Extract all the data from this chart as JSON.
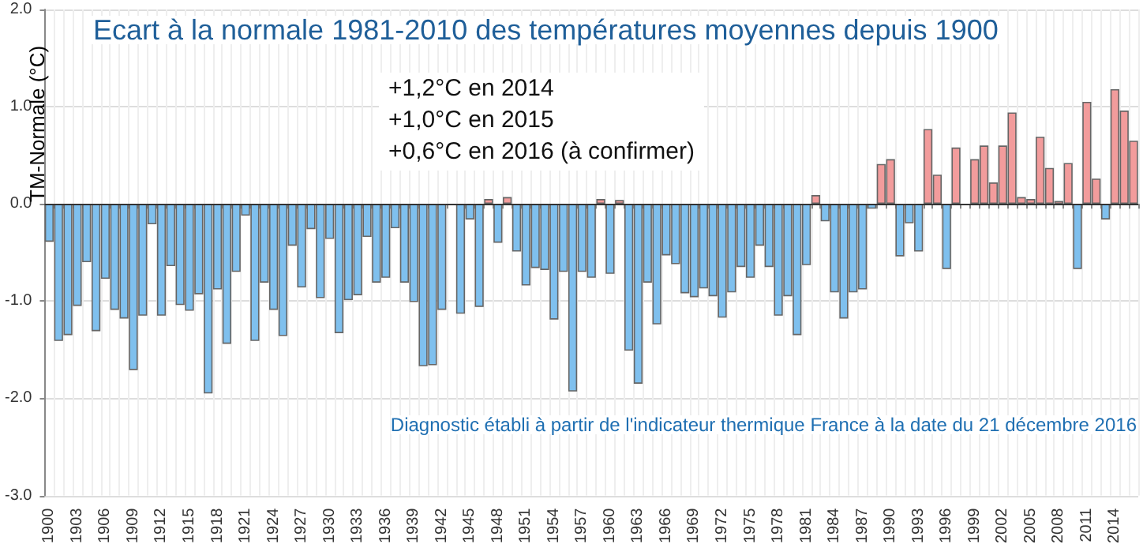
{
  "chart_data": {
    "type": "bar",
    "title": "Ecart à la normale 1981-2010 des températures moyennes depuis 1900",
    "ylabel": "TM-Normale (°C)",
    "annotations": [
      "+1,2°C en 2014\n+1,0°C en 2015\n+0,6°C en 2016 (à confirmer)",
      "Diagnostic établi à partir de l'indicateur thermique France à la date du 21 décembre 2016"
    ],
    "categories": [
      "1900",
      null,
      null,
      "1903",
      null,
      null,
      "1906",
      null,
      null,
      "1909",
      null,
      null,
      "1912",
      null,
      null,
      "1915",
      null,
      null,
      "1918",
      null,
      null,
      "1921",
      null,
      null,
      "1924",
      null,
      null,
      "1927",
      null,
      null,
      "1930",
      null,
      null,
      "1933",
      null,
      null,
      "1936",
      null,
      null,
      "1939",
      null,
      null,
      "1942",
      null,
      null,
      "1945",
      null,
      null,
      "1948",
      null,
      null,
      "1951",
      null,
      null,
      "1954",
      null,
      null,
      "1957",
      null,
      null,
      "1960",
      null,
      null,
      "1963",
      null,
      null,
      "1966",
      null,
      null,
      "1969",
      null,
      null,
      "1972",
      null,
      null,
      "1975",
      null,
      null,
      "1978",
      null,
      null,
      "1981",
      null,
      null,
      "1984",
      null,
      null,
      "1987",
      null,
      null,
      "1990",
      null,
      null,
      "1993",
      null,
      null,
      "1996",
      null,
      null,
      "1999",
      null,
      null,
      "2002",
      null,
      null,
      "2005",
      null,
      null,
      "2008",
      null,
      null,
      "2011",
      null,
      null,
      "2014",
      null,
      null
    ],
    "values": [
      -0.39,
      -1.41,
      -1.35,
      -1.05,
      -0.6,
      -1.31,
      -0.77,
      -1.09,
      -1.18,
      -1.71,
      -1.15,
      -0.21,
      -1.15,
      -0.64,
      -1.04,
      -1.1,
      -0.93,
      -1.95,
      -0.88,
      -1.44,
      -0.7,
      -0.12,
      -1.41,
      -0.81,
      -1.09,
      -1.36,
      -0.43,
      -0.86,
      -0.26,
      -0.97,
      -0.36,
      -1.33,
      -0.99,
      -0.94,
      -0.34,
      -0.81,
      -0.76,
      -0.25,
      -0.81,
      -1.01,
      -1.67,
      -1.66,
      -1.09,
      null,
      -1.13,
      -0.16,
      -1.06,
      0.05,
      -0.4,
      0.07,
      -0.49,
      -0.84,
      -0.66,
      -0.68,
      -1.19,
      -0.7,
      -1.93,
      -0.7,
      -0.76,
      0.05,
      -0.72,
      0.04,
      -1.51,
      -1.85,
      -0.81,
      -1.24,
      -0.53,
      -0.62,
      -0.92,
      -0.96,
      -0.87,
      -0.95,
      -1.17,
      -0.91,
      -0.65,
      -0.76,
      -0.43,
      -0.65,
      -1.15,
      -0.95,
      -1.35,
      -0.63,
      0.09,
      -0.18,
      -0.91,
      -1.18,
      -0.91,
      -0.88,
      -0.05,
      0.41,
      0.46,
      -0.54,
      -0.2,
      -0.49,
      0.77,
      0.3,
      -0.67,
      0.58,
      null,
      0.46,
      0.6,
      0.22,
      0.6,
      0.94,
      0.07,
      0.05,
      0.69,
      0.37,
      0.03,
      0.42,
      -0.67,
      1.05,
      0.26,
      -0.16,
      1.18,
      0.96,
      0.65
    ],
    "colors": [
      "#7fc0ee",
      "#7fc0ee",
      "#7fc0ee",
      "#7fc0ee",
      "#7fc0ee",
      "#7fc0ee",
      "#7fc0ee",
      "#7fc0ee",
      "#7fc0ee",
      "#7fc0ee",
      "#7fc0ee",
      "#7fc0ee",
      "#7fc0ee",
      "#7fc0ee",
      "#7fc0ee",
      "#7fc0ee",
      "#7fc0ee",
      "#7fc0ee",
      "#7fc0ee",
      "#7fc0ee",
      "#7fc0ee",
      "#7fc0ee",
      "#7fc0ee",
      "#7fc0ee",
      "#7fc0ee",
      "#7fc0ee",
      "#7fc0ee",
      "#7fc0ee",
      "#7fc0ee",
      "#7fc0ee",
      "#7fc0ee",
      "#7fc0ee",
      "#7fc0ee",
      "#7fc0ee",
      "#7fc0ee",
      "#7fc0ee",
      "#7fc0ee",
      "#7fc0ee",
      "#7fc0ee",
      "#7fc0ee",
      "#7fc0ee",
      "#7fc0ee",
      "#7fc0ee",
      "#7fc0ee",
      "#7fc0ee",
      "#7fc0ee",
      "#7fc0ee",
      "#f29c9c",
      "#7fc0ee",
      "#f29c9c",
      "#7fc0ee",
      "#7fc0ee",
      "#7fc0ee",
      "#7fc0ee",
      "#7fc0ee",
      "#7fc0ee",
      "#7fc0ee",
      "#7fc0ee",
      "#7fc0ee",
      "#f29c9c",
      "#7fc0ee",
      "#f29c9c",
      "#7fc0ee",
      "#7fc0ee",
      "#7fc0ee",
      "#7fc0ee",
      "#7fc0ee",
      "#7fc0ee",
      "#7fc0ee",
      "#7fc0ee",
      "#7fc0ee",
      "#7fc0ee",
      "#7fc0ee",
      "#7fc0ee",
      "#7fc0ee",
      "#7fc0ee",
      "#7fc0ee",
      "#7fc0ee",
      "#7fc0ee",
      "#7fc0ee",
      "#7fc0ee",
      "#7fc0ee",
      "#f29c9c",
      "#7fc0ee",
      "#7fc0ee",
      "#7fc0ee",
      "#7fc0ee",
      "#7fc0ee",
      "#7fc0ee",
      "#f29c9c",
      "#f29c9c",
      "#7fc0ee",
      "#7fc0ee",
      "#7fc0ee",
      "#f29c9c",
      "#f29c9c",
      "#7fc0ee",
      "#f29c9c",
      "#7fc0ee",
      "#f29c9c",
      "#f29c9c",
      "#f29c9c",
      "#f29c9c",
      "#f29c9c",
      "#f29c9c",
      "#f29c9c",
      "#f29c9c",
      "#f29c9c",
      "#f29c9c",
      "#f29c9c",
      "#7fc0ee",
      "#f29c9c",
      "#f29c9c",
      "#7fc0ee",
      "#f29c9c",
      "#f29c9c",
      "#f29c9c"
    ],
    "ylim": [
      -3,
      2
    ],
    "yticks": [
      {
        "value": -3,
        "label": "-3.0"
      },
      {
        "value": -2,
        "label": "-2.0"
      },
      {
        "value": -1,
        "label": "-1.0"
      },
      {
        "value": 0,
        "label": "0.0"
      },
      {
        "value": 1,
        "label": "1.0"
      },
      {
        "value": 2,
        "label": "2.0"
      }
    ],
    "grid": true
  }
}
